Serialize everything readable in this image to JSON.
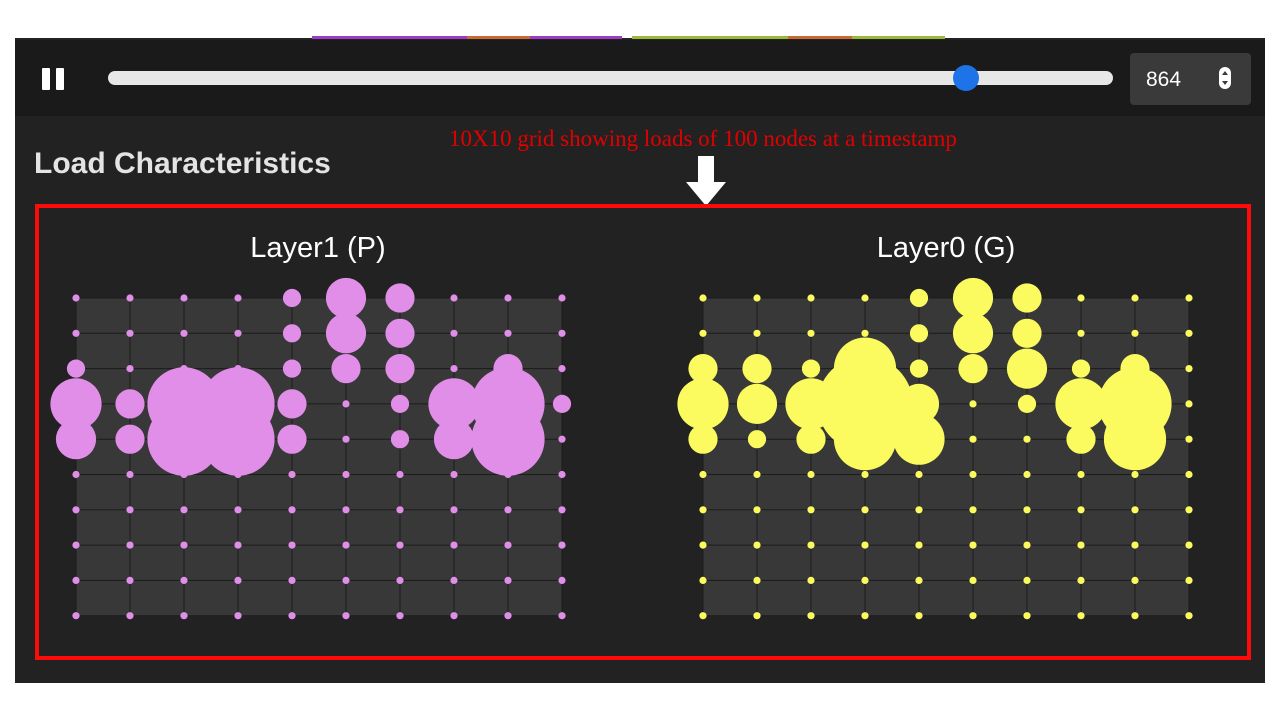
{
  "toolbar": {
    "pause_icon": "pause-icon",
    "timestep_progress": 0.854,
    "timestep_value": "864",
    "stepper_icon": "stepper-icon"
  },
  "section": {
    "title": "Load Characteristics"
  },
  "annotation": {
    "text": "10X10 grid showing loads of 100 nodes at a timestamp",
    "color": "#e10000",
    "arrow_icon": "arrow-down-icon"
  },
  "layers": [
    {
      "title": "Layer1 (P)",
      "color": "#e18ee9",
      "loads": [
        [
          1,
          1,
          1,
          1,
          2,
          4,
          3,
          1,
          1,
          1
        ],
        [
          1,
          1,
          1,
          1,
          2,
          4,
          3,
          1,
          1,
          1
        ],
        [
          2,
          1,
          1,
          1,
          2,
          3,
          3,
          1,
          3,
          1
        ],
        [
          5,
          3,
          7,
          7,
          3,
          1,
          2,
          5,
          7,
          2
        ],
        [
          4,
          3,
          7,
          7,
          3,
          1,
          2,
          4,
          7,
          1
        ],
        [
          1,
          1,
          1,
          1,
          1,
          1,
          1,
          1,
          1,
          1
        ],
        [
          1,
          1,
          1,
          1,
          1,
          1,
          1,
          1,
          1,
          1
        ],
        [
          1,
          1,
          1,
          1,
          1,
          1,
          1,
          1,
          1,
          1
        ],
        [
          1,
          1,
          1,
          1,
          1,
          1,
          1,
          1,
          1,
          1
        ],
        [
          1,
          1,
          1,
          1,
          1,
          1,
          1,
          1,
          1,
          1
        ]
      ]
    },
    {
      "title": "Layer0 (G)",
      "color": "#fbfb5f",
      "loads": [
        [
          1,
          1,
          1,
          1,
          2,
          4,
          3,
          1,
          1,
          1
        ],
        [
          1,
          1,
          1,
          1,
          2,
          4,
          3,
          1,
          1,
          1
        ],
        [
          3,
          3,
          2,
          6,
          2,
          3,
          4,
          2,
          3,
          1
        ],
        [
          5,
          4,
          5,
          9,
          4,
          1,
          2,
          5,
          7,
          1
        ],
        [
          3,
          2,
          3,
          6,
          5,
          1,
          1,
          3,
          6,
          1
        ],
        [
          1,
          1,
          1,
          1,
          1,
          1,
          1,
          1,
          1,
          1
        ],
        [
          1,
          1,
          1,
          1,
          1,
          1,
          1,
          1,
          1,
          1
        ],
        [
          1,
          1,
          1,
          1,
          1,
          1,
          1,
          1,
          1,
          1
        ],
        [
          1,
          1,
          1,
          1,
          1,
          1,
          1,
          1,
          1,
          1
        ],
        [
          1,
          1,
          1,
          1,
          1,
          1,
          1,
          1,
          1,
          1
        ]
      ]
    }
  ],
  "top_strip_colors": [
    "#9b3cc4",
    "#c86a34",
    "#9b3cc4",
    "#9ab83a",
    "#c86a34",
    "#9ab83a"
  ]
}
